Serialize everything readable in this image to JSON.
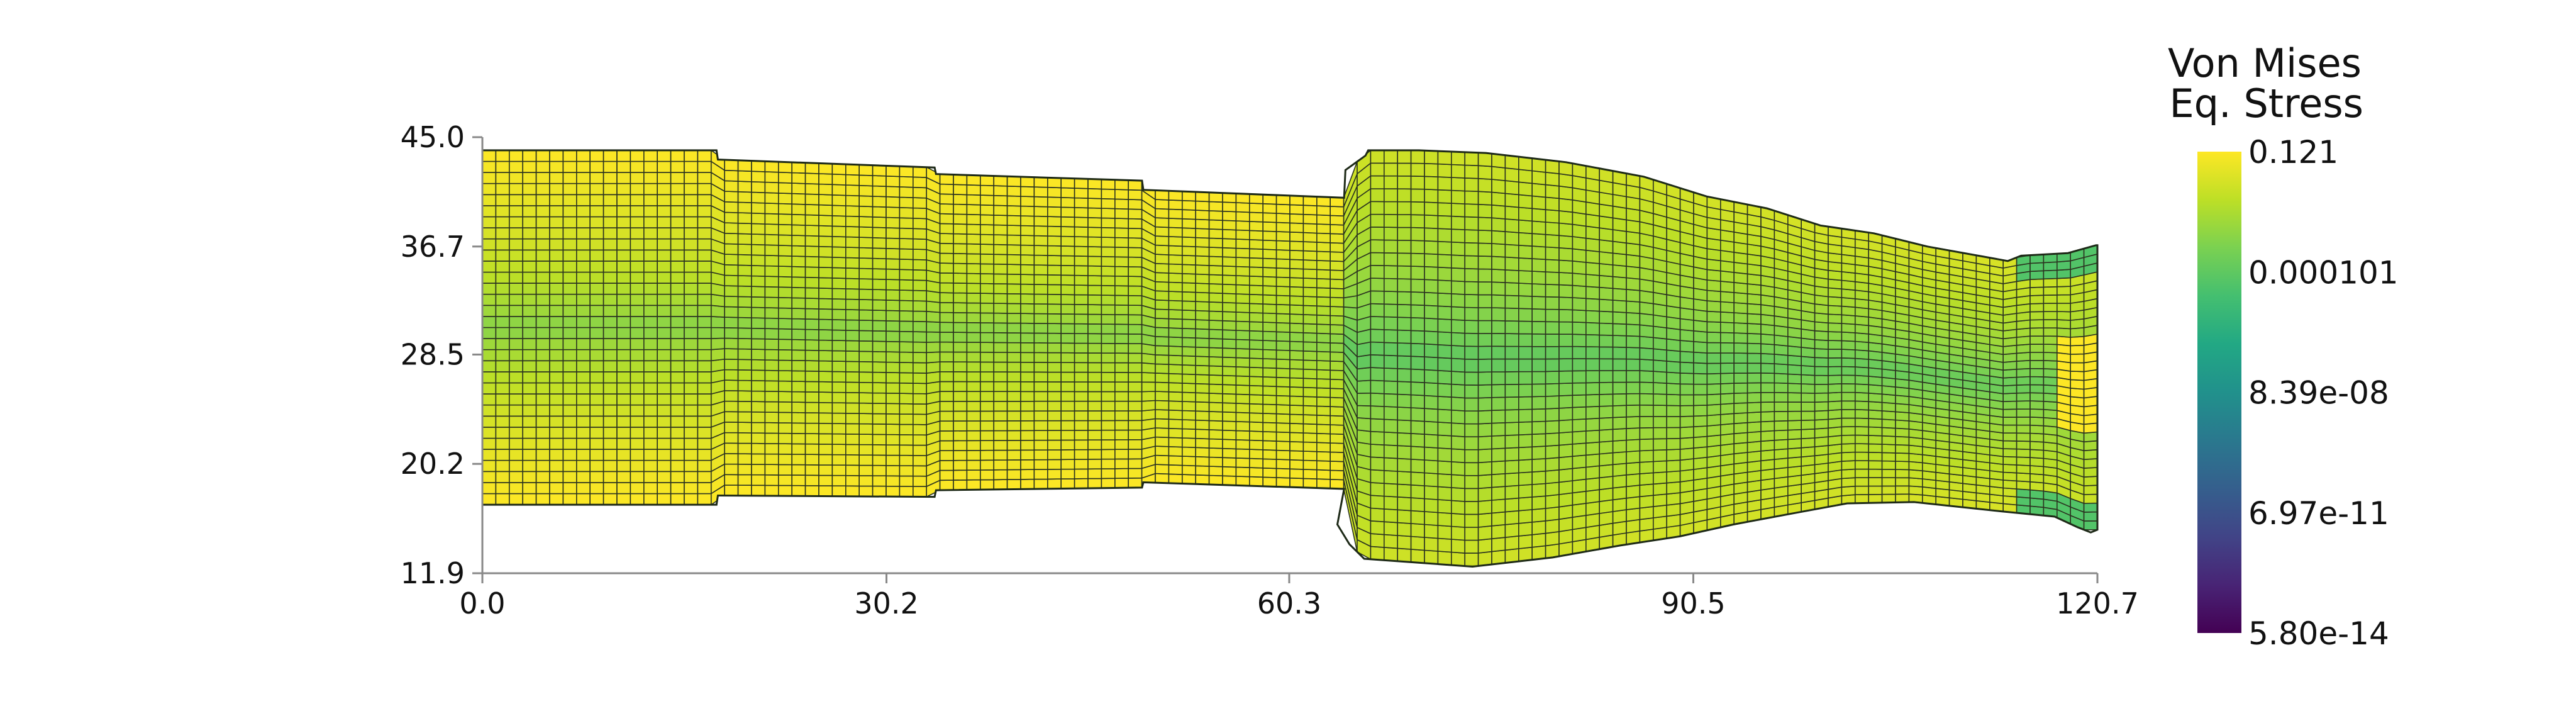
{
  "chart_data": {
    "type": "heatmap",
    "title": "",
    "xlabel": "",
    "ylabel": "",
    "xlim": [
      0.0,
      120.7
    ],
    "ylim": [
      11.9,
      45.0
    ],
    "x_ticks": [
      "0.0",
      "30.2",
      "60.3",
      "90.5",
      "120.7"
    ],
    "y_ticks": [
      "11.9",
      "20.2",
      "28.5",
      "36.7",
      "45.0"
    ],
    "grid": false,
    "colormap": "viridis",
    "colorbar": {
      "title_lines": [
        "Von Mises",
        "Eq. Stress"
      ],
      "scale": "log",
      "min": 5.8e-14,
      "max": 0.121,
      "tick_labels": [
        "0.121",
        "0.000101",
        "8.39e-08",
        "6.97e-11",
        "5.80e-14"
      ],
      "placement": "right"
    },
    "mesh": {
      "cols": 120,
      "rows": 32,
      "top_edge": [
        [
          0,
          44.0
        ],
        [
          17.5,
          44.0
        ],
        [
          17.6,
          43.3
        ],
        [
          33.8,
          42.7
        ],
        [
          33.9,
          42.2
        ],
        [
          49.3,
          41.7
        ],
        [
          49.4,
          41.0
        ],
        [
          64.4,
          40.4
        ],
        [
          64.5,
          42.5
        ],
        [
          66.0,
          43.6
        ],
        [
          66.2,
          44.0
        ],
        [
          70.0,
          44.0
        ],
        [
          75.0,
          43.8
        ],
        [
          81.0,
          43.1
        ],
        [
          86.8,
          42.0
        ],
        [
          91.5,
          40.5
        ],
        [
          96.0,
          39.6
        ],
        [
          100.0,
          38.3
        ],
        [
          104.0,
          37.7
        ],
        [
          108.0,
          36.7
        ],
        [
          114.0,
          35.6
        ],
        [
          115.0,
          36.0
        ],
        [
          118.5,
          36.2
        ],
        [
          120.6,
          36.8
        ],
        [
          120.7,
          36.8
        ]
      ],
      "bottom_edge": [
        [
          0,
          17.1
        ],
        [
          17.5,
          17.1
        ],
        [
          17.6,
          17.8
        ],
        [
          33.8,
          17.7
        ],
        [
          33.9,
          18.2
        ],
        [
          49.3,
          18.4
        ],
        [
          49.4,
          18.8
        ],
        [
          64.4,
          18.3
        ],
        [
          63.9,
          15.6
        ],
        [
          64.8,
          14.1
        ],
        [
          65.9,
          13.0
        ],
        [
          74.0,
          12.4
        ],
        [
          80.0,
          13.1
        ],
        [
          85.0,
          14.0
        ],
        [
          89.5,
          14.7
        ],
        [
          93.5,
          15.6
        ],
        [
          97.7,
          16.4
        ],
        [
          102.0,
          17.2
        ],
        [
          107.0,
          17.3
        ],
        [
          113.5,
          16.6
        ],
        [
          117.5,
          16.2
        ],
        [
          119.2,
          15.4
        ],
        [
          120.2,
          15.0
        ],
        [
          120.7,
          15.2
        ]
      ],
      "field": {
        "min_row_value": 0.0005,
        "max_row_value": 0.121,
        "low_zone_value": 5e-05
      }
    }
  }
}
